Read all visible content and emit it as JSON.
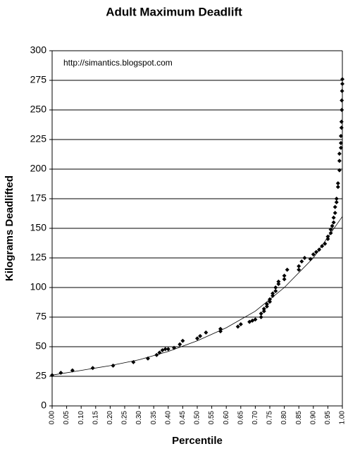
{
  "chart_data": {
    "type": "scatter",
    "title": "Adult Maximum Deadlift",
    "xlabel": "Percentile",
    "ylabel": "Kilograms Deadlifted",
    "annotation": "http://simantics.blogspot.com",
    "color": "#000000",
    "grid": true,
    "xlim": [
      0,
      1
    ],
    "ylim": [
      0,
      300
    ],
    "xticks": [
      {
        "value": 0,
        "label": "0.00"
      },
      {
        "value": 0.05,
        "label": "0.05"
      },
      {
        "value": 0.1,
        "label": "0.10"
      },
      {
        "value": 0.15,
        "label": "0.15"
      },
      {
        "value": 0.2,
        "label": "0.20"
      },
      {
        "value": 0.25,
        "label": "0.25"
      },
      {
        "value": 0.3,
        "label": "0.30"
      },
      {
        "value": 0.35,
        "label": "0.35"
      },
      {
        "value": 0.4,
        "label": "0.40"
      },
      {
        "value": 0.45,
        "label": "0.45"
      },
      {
        "value": 0.5,
        "label": "0.50"
      },
      {
        "value": 0.55,
        "label": "0.55"
      },
      {
        "value": 0.6,
        "label": "0.60"
      },
      {
        "value": 0.65,
        "label": "0.65"
      },
      {
        "value": 0.7,
        "label": "0.70"
      },
      {
        "value": 0.75,
        "label": "0.75"
      },
      {
        "value": 0.8,
        "label": "0.80"
      },
      {
        "value": 0.85,
        "label": "0.85"
      },
      {
        "value": 0.9,
        "label": "0.90"
      },
      {
        "value": 0.95,
        "label": "0.95"
      },
      {
        "value": 1,
        "label": "1.00"
      }
    ],
    "yticks": [
      0,
      25,
      50,
      75,
      100,
      125,
      150,
      175,
      200,
      225,
      250,
      275,
      300
    ],
    "x": [
      0.0,
      0.03,
      0.07,
      0.14,
      0.21,
      0.28,
      0.33,
      0.36,
      0.37,
      0.38,
      0.39,
      0.4,
      0.42,
      0.44,
      0.45,
      0.5,
      0.51,
      0.53,
      0.58,
      0.58,
      0.64,
      0.65,
      0.68,
      0.69,
      0.7,
      0.72,
      0.72,
      0.73,
      0.73,
      0.74,
      0.74,
      0.75,
      0.75,
      0.76,
      0.76,
      0.77,
      0.77,
      0.78,
      0.78,
      0.8,
      0.8,
      0.81,
      0.85,
      0.85,
      0.86,
      0.87,
      0.89,
      0.9,
      0.91,
      0.92,
      0.93,
      0.94,
      0.95,
      0.95,
      0.96,
      0.96,
      0.965,
      0.97,
      0.97,
      0.975,
      0.975,
      0.98,
      0.98,
      0.985,
      0.985,
      0.99,
      0.99,
      0.99,
      0.995,
      0.995,
      0.995,
      0.997,
      0.997,
      0.998,
      0.998,
      0.999,
      1.0,
      1.0
    ],
    "values": [
      26,
      28,
      30,
      32,
      34,
      37,
      40,
      43,
      45,
      47,
      48,
      48,
      49,
      52,
      55,
      57,
      59,
      62,
      63,
      65,
      67,
      69,
      71,
      72,
      73,
      75,
      78,
      80,
      82,
      84,
      86,
      88,
      90,
      93,
      95,
      97,
      100,
      103,
      105,
      107,
      110,
      115,
      115,
      118,
      122,
      125,
      124,
      128,
      130,
      132,
      135,
      137,
      141,
      143,
      146,
      149,
      152,
      155,
      159,
      163,
      168,
      172,
      175,
      185,
      188,
      199,
      207,
      213,
      218,
      222,
      228,
      235,
      240,
      250,
      258,
      266,
      272,
      276
    ],
    "trendline": {
      "x": [
        0,
        0.1,
        0.2,
        0.3,
        0.4,
        0.5,
        0.6,
        0.7,
        0.8,
        0.9,
        1.0
      ],
      "values": [
        26,
        30,
        34,
        39,
        46,
        55,
        66,
        80,
        100,
        125,
        160
      ]
    }
  }
}
